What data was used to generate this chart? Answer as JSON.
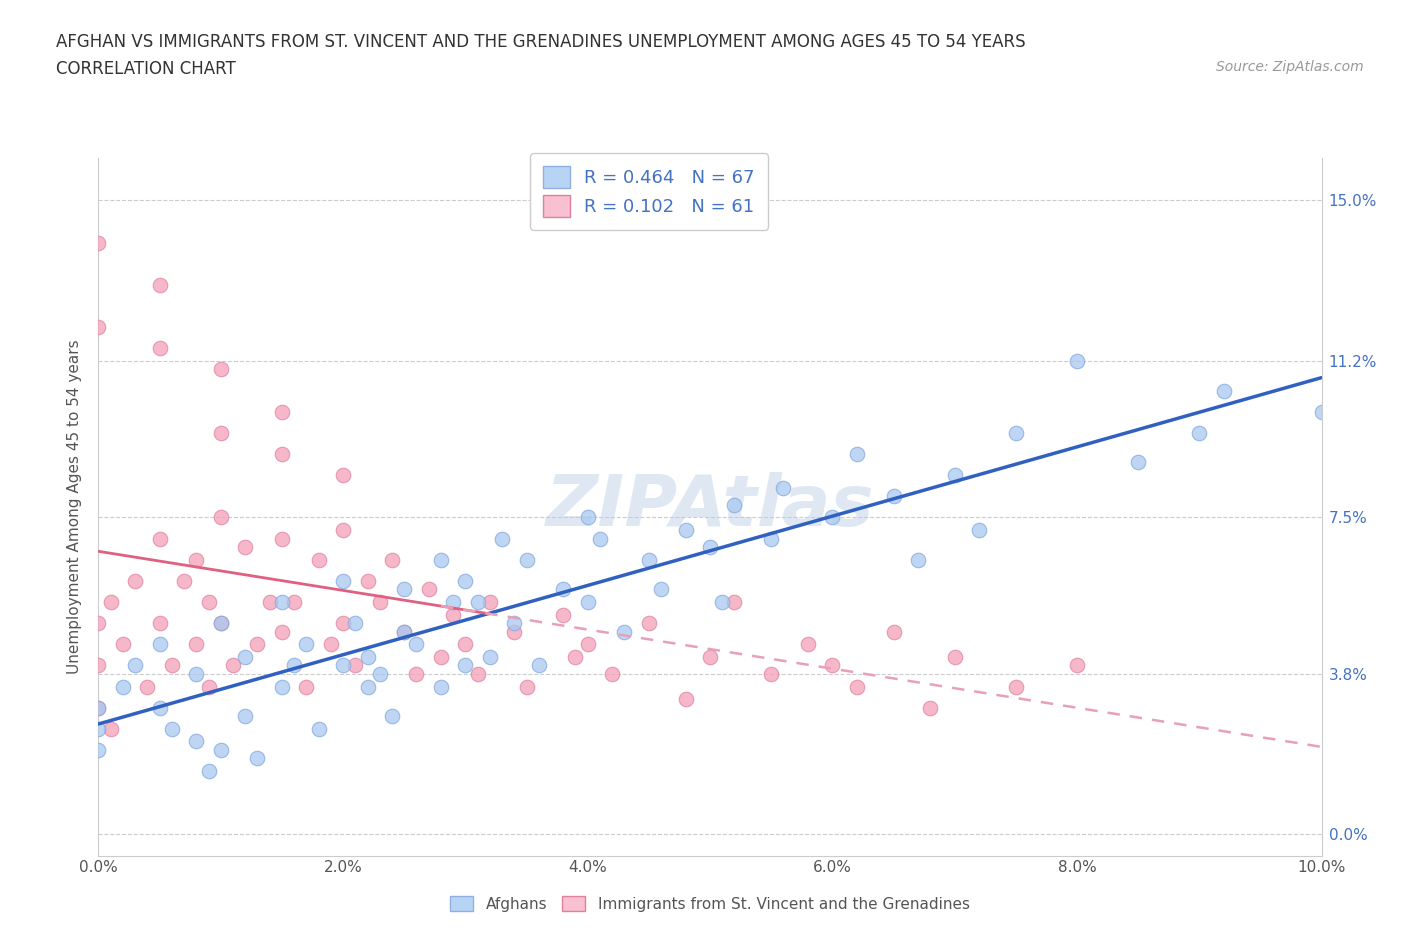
{
  "title_line1": "AFGHAN VS IMMIGRANTS FROM ST. VINCENT AND THE GRENADINES UNEMPLOYMENT AMONG AGES 45 TO 54 YEARS",
  "title_line2": "CORRELATION CHART",
  "source_text": "Source: ZipAtlas.com",
  "ylabel": "Unemployment Among Ages 45 to 54 years",
  "xlim": [
    0.0,
    0.1
  ],
  "ylim": [
    -0.005,
    0.16
  ],
  "ytick_labels": [
    "0.0%",
    "3.8%",
    "7.5%",
    "11.2%",
    "15.0%"
  ],
  "ytick_values": [
    0.0,
    0.038,
    0.075,
    0.112,
    0.15
  ],
  "xtick_labels": [
    "0.0%",
    "2.0%",
    "4.0%",
    "6.0%",
    "8.0%",
    "10.0%"
  ],
  "xtick_values": [
    0.0,
    0.02,
    0.04,
    0.06,
    0.08,
    0.1
  ],
  "afghan_color": "#a8c8f0",
  "svg_color": "#f4a0b8",
  "afghan_R": 0.464,
  "afghan_N": 67,
  "svg_R": 0.102,
  "svg_N": 61,
  "afghan_trend_color": "#3060c0",
  "svg_trend_solid_color": "#e06080",
  "svg_trend_dash_color": "#e8a0b8",
  "watermark": "ZIPAtlas",
  "legend_label_afghan": "Afghans",
  "legend_label_svg": "Immigrants from St. Vincent and the Grenadines",
  "afghan_x": [
    0.0,
    0.0,
    0.0,
    0.002,
    0.003,
    0.005,
    0.005,
    0.006,
    0.008,
    0.008,
    0.009,
    0.01,
    0.01,
    0.012,
    0.012,
    0.013,
    0.015,
    0.015,
    0.016,
    0.017,
    0.018,
    0.02,
    0.02,
    0.021,
    0.022,
    0.022,
    0.023,
    0.024,
    0.025,
    0.025,
    0.026,
    0.028,
    0.028,
    0.029,
    0.03,
    0.03,
    0.031,
    0.032,
    0.033,
    0.034,
    0.035,
    0.036,
    0.038,
    0.04,
    0.04,
    0.041,
    0.043,
    0.045,
    0.046,
    0.048,
    0.05,
    0.051,
    0.052,
    0.055,
    0.056,
    0.06,
    0.062,
    0.065,
    0.067,
    0.07,
    0.072,
    0.075,
    0.08,
    0.085,
    0.09,
    0.092,
    0.1
  ],
  "afghan_y": [
    0.03,
    0.025,
    0.02,
    0.035,
    0.04,
    0.045,
    0.03,
    0.025,
    0.038,
    0.022,
    0.015,
    0.05,
    0.02,
    0.042,
    0.028,
    0.018,
    0.055,
    0.035,
    0.04,
    0.045,
    0.025,
    0.06,
    0.04,
    0.05,
    0.035,
    0.042,
    0.038,
    0.028,
    0.048,
    0.058,
    0.045,
    0.065,
    0.035,
    0.055,
    0.06,
    0.04,
    0.055,
    0.042,
    0.07,
    0.05,
    0.065,
    0.04,
    0.058,
    0.075,
    0.055,
    0.07,
    0.048,
    0.065,
    0.058,
    0.072,
    0.068,
    0.055,
    0.078,
    0.07,
    0.082,
    0.075,
    0.09,
    0.08,
    0.065,
    0.085,
    0.072,
    0.095,
    0.112,
    0.088,
    0.095,
    0.105,
    0.1
  ],
  "svg_x": [
    0.0,
    0.0,
    0.0,
    0.001,
    0.001,
    0.002,
    0.003,
    0.004,
    0.005,
    0.005,
    0.006,
    0.007,
    0.008,
    0.008,
    0.009,
    0.009,
    0.01,
    0.01,
    0.011,
    0.012,
    0.013,
    0.014,
    0.015,
    0.015,
    0.016,
    0.017,
    0.018,
    0.019,
    0.02,
    0.02,
    0.021,
    0.022,
    0.023,
    0.024,
    0.025,
    0.026,
    0.027,
    0.028,
    0.029,
    0.03,
    0.031,
    0.032,
    0.034,
    0.035,
    0.038,
    0.039,
    0.04,
    0.042,
    0.045,
    0.048,
    0.05,
    0.052,
    0.055,
    0.058,
    0.06,
    0.062,
    0.065,
    0.068,
    0.07,
    0.075,
    0.08
  ],
  "svg_y": [
    0.05,
    0.04,
    0.03,
    0.055,
    0.025,
    0.045,
    0.06,
    0.035,
    0.07,
    0.05,
    0.04,
    0.06,
    0.065,
    0.045,
    0.055,
    0.035,
    0.075,
    0.05,
    0.04,
    0.068,
    0.045,
    0.055,
    0.07,
    0.048,
    0.055,
    0.035,
    0.065,
    0.045,
    0.072,
    0.05,
    0.04,
    0.06,
    0.055,
    0.065,
    0.048,
    0.038,
    0.058,
    0.042,
    0.052,
    0.045,
    0.038,
    0.055,
    0.048,
    0.035,
    0.052,
    0.042,
    0.045,
    0.038,
    0.05,
    0.032,
    0.042,
    0.055,
    0.038,
    0.045,
    0.04,
    0.035,
    0.048,
    0.03,
    0.042,
    0.035,
    0.04
  ],
  "svg_high_x": [
    0.005,
    0.01,
    0.015,
    0.015,
    0.02,
    0.0,
    0.0,
    0.005,
    0.01
  ],
  "svg_high_y": [
    0.13,
    0.11,
    0.1,
    0.09,
    0.085,
    0.14,
    0.12,
    0.115,
    0.095
  ]
}
